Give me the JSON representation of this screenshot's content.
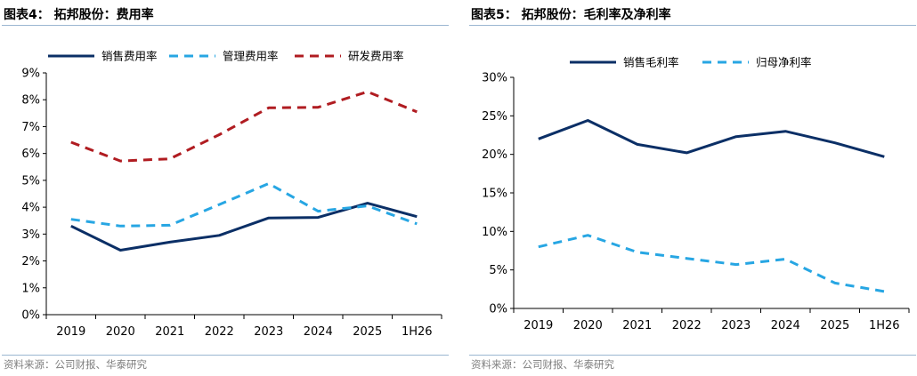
{
  "panels": [
    {
      "title": "图表4：  拓邦股份：费用率",
      "source": "资料来源：公司财报、华泰研究",
      "chart_data": {
        "type": "line",
        "x": [
          "2019",
          "2020",
          "2021",
          "2022",
          "2023",
          "2024",
          "2025",
          "1H26"
        ],
        "ylim": [
          0,
          9
        ],
        "yticks": [
          0,
          1,
          2,
          3,
          4,
          5,
          6,
          7,
          8,
          9
        ],
        "ytick_labels": [
          "0%",
          "1%",
          "2%",
          "3%",
          "4%",
          "5%",
          "6%",
          "7%",
          "8%",
          "9%"
        ],
        "grid": false,
        "legend_position": "top",
        "series": [
          {
            "name": "销售费用率",
            "color": "#0b2f66",
            "dash": "solid",
            "values": [
              3.3,
              2.4,
              2.7,
              2.95,
              3.6,
              3.62,
              4.15,
              3.65
            ]
          },
          {
            "name": "管理费用率",
            "color": "#27a6e3",
            "dash": "dashed",
            "values": [
              3.55,
              3.3,
              3.33,
              4.1,
              4.88,
              3.85,
              4.05,
              3.38
            ]
          },
          {
            "name": "研发费用率",
            "color": "#b01c21",
            "dash": "dashed",
            "values": [
              6.42,
              5.72,
              5.8,
              6.7,
              7.7,
              7.72,
              8.3,
              7.55
            ]
          }
        ]
      }
    },
    {
      "title": "图表5：  拓邦股份：毛利率及净利率",
      "source": "资料来源：公司财报、华泰研究",
      "chart_data": {
        "type": "line",
        "x": [
          "2019",
          "2020",
          "2021",
          "2022",
          "2023",
          "2024",
          "2025",
          "1H26"
        ],
        "ylim": [
          0,
          30
        ],
        "yticks": [
          0,
          5,
          10,
          15,
          20,
          25,
          30
        ],
        "ytick_labels": [
          "0%",
          "5%",
          "10%",
          "15%",
          "20%",
          "25%",
          "30%"
        ],
        "grid": false,
        "legend_position": "top",
        "series": [
          {
            "name": "销售毛利率",
            "color": "#0b2f66",
            "dash": "solid",
            "values": [
              22.0,
              24.4,
              21.3,
              20.2,
              22.3,
              23.0,
              21.5,
              19.7
            ]
          },
          {
            "name": "归母净利率",
            "color": "#27a6e3",
            "dash": "dashed",
            "values": [
              8.0,
              9.5,
              7.3,
              6.5,
              5.7,
              6.4,
              3.3,
              2.2
            ]
          }
        ]
      }
    }
  ]
}
